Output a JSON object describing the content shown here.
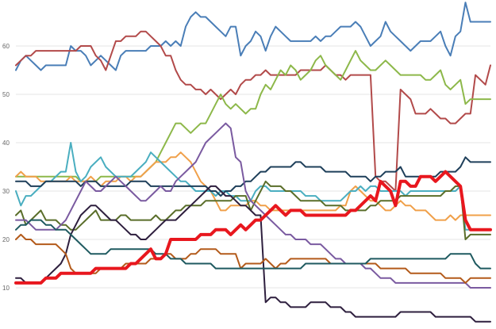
{
  "chart_data": {
    "type": "line",
    "title": "",
    "xlabel": "",
    "ylabel": "",
    "ylim": [
      2,
      70
    ],
    "x_count": 96,
    "grid": "horizontal",
    "yticks": [
      10,
      20,
      30,
      40,
      50,
      60
    ],
    "ytick_labels": [
      "10",
      "20",
      "30",
      "40",
      "50",
      "60"
    ],
    "series": [
      {
        "color": "#4a7eb7",
        "width": 2,
        "values": [
          55,
          57,
          58,
          57,
          56,
          55,
          56,
          56,
          56,
          56,
          56,
          60,
          59,
          59,
          58,
          56,
          57,
          58,
          57,
          56,
          55,
          58,
          59,
          59,
          59,
          59,
          59,
          60,
          60,
          60,
          61,
          60,
          61,
          60,
          64,
          66,
          67,
          66,
          66,
          65,
          64,
          63,
          62,
          64,
          64,
          58,
          60,
          61,
          63,
          62,
          59,
          62,
          64,
          63,
          62,
          61,
          61,
          61,
          61,
          61,
          62,
          61,
          62,
          62,
          63,
          64,
          64,
          64,
          65,
          64,
          62,
          60,
          61,
          62,
          65,
          63,
          62,
          61,
          60,
          59,
          60,
          61,
          61,
          61,
          62,
          63,
          60,
          58,
          62,
          63,
          69,
          65,
          65,
          65,
          65,
          65
        ]
      },
      {
        "color": "#b24a4a",
        "width": 2,
        "values": [
          56,
          57,
          58,
          58,
          59,
          59,
          59,
          59,
          59,
          59,
          59,
          59,
          59,
          60,
          60,
          60,
          58,
          57,
          55,
          58,
          61,
          61,
          62,
          62,
          62,
          63,
          63,
          62,
          61,
          60,
          58,
          58,
          55,
          53,
          52,
          52,
          51,
          51,
          50,
          51,
          50,
          49,
          50,
          51,
          50,
          52,
          53,
          53,
          54,
          54,
          55,
          54,
          54,
          54,
          54,
          54,
          54,
          55,
          55,
          55,
          55,
          55,
          56,
          55,
          54,
          54,
          53,
          54,
          54,
          54,
          54,
          54,
          33,
          32,
          32,
          31,
          30,
          51,
          50,
          49,
          46,
          46,
          46,
          47,
          46,
          45,
          45,
          44,
          44,
          45,
          46,
          46,
          54,
          53,
          52,
          56
        ]
      },
      {
        "color": "#8db84a",
        "width": 2,
        "values": [
          33,
          33,
          33,
          33,
          33,
          33,
          33,
          33,
          33,
          33,
          33,
          33,
          33,
          32,
          32,
          32,
          32,
          33,
          33,
          33,
          33,
          33,
          33,
          33,
          33,
          33,
          34,
          35,
          36,
          38,
          40,
          42,
          44,
          44,
          43,
          42,
          43,
          44,
          44,
          46,
          48,
          50,
          48,
          47,
          48,
          47,
          46,
          47,
          47,
          50,
          52,
          51,
          53,
          55,
          54,
          56,
          55,
          53,
          54,
          55,
          57,
          58,
          56,
          55,
          54,
          53,
          55,
          57,
          59,
          57,
          56,
          55,
          55,
          56,
          57,
          56,
          55,
          54,
          54,
          54,
          54,
          54,
          53,
          53,
          54,
          55,
          52,
          51,
          52,
          53,
          48,
          49,
          49,
          49,
          49,
          49
        ]
      },
      {
        "color": "#f0a04a",
        "width": 2,
        "values": [
          33,
          34,
          33,
          33,
          33,
          32,
          32,
          32,
          32,
          32,
          32,
          33,
          32,
          32,
          32,
          33,
          32,
          31,
          32,
          32,
          32,
          33,
          33,
          32,
          33,
          33,
          34,
          35,
          36,
          36,
          36,
          37,
          37,
          38,
          37,
          36,
          34,
          32,
          31,
          30,
          28,
          26,
          26,
          27,
          27,
          27,
          27,
          28,
          28,
          27,
          27,
          26,
          26,
          26,
          26,
          26,
          26,
          26,
          26,
          26,
          26,
          26,
          26,
          26,
          26,
          27,
          27,
          30,
          31,
          30,
          29,
          28,
          28,
          27,
          26,
          26,
          27,
          28,
          27,
          27,
          26,
          26,
          26,
          25,
          24,
          24,
          24,
          25,
          24,
          25,
          25,
          25,
          25,
          25,
          25,
          25
        ]
      },
      {
        "color": "#4aaec0",
        "width": 2,
        "values": [
          30,
          27,
          29,
          29,
          30,
          31,
          32,
          32,
          33,
          34,
          34,
          40,
          34,
          32,
          33,
          35,
          36,
          37,
          35,
          34,
          33,
          33,
          33,
          33,
          34,
          35,
          36,
          38,
          37,
          36,
          35,
          34,
          33,
          32,
          32,
          31,
          30,
          30,
          30,
          30,
          29,
          30,
          30,
          29,
          29,
          28,
          28,
          28,
          30,
          31,
          31,
          30,
          30,
          30,
          30,
          30,
          30,
          30,
          29,
          29,
          29,
          28,
          28,
          28,
          28,
          28,
          29,
          30,
          30,
          31,
          30,
          31,
          31,
          30,
          30,
          30,
          30,
          30,
          29,
          30,
          30,
          30,
          30,
          30,
          30,
          30,
          30,
          30,
          30,
          31,
          22,
          22,
          22,
          22,
          22,
          22
        ]
      },
      {
        "color": "#1e3f5a",
        "width": 2,
        "values": [
          32,
          32,
          32,
          31,
          31,
          31,
          32,
          32,
          32,
          32,
          32,
          32,
          32,
          31,
          32,
          32,
          32,
          31,
          31,
          31,
          31,
          31,
          31,
          32,
          32,
          32,
          32,
          31,
          31,
          31,
          31,
          31,
          31,
          31,
          31,
          31,
          31,
          31,
          31,
          30,
          30,
          29,
          30,
          30,
          31,
          31,
          32,
          32,
          33,
          34,
          34,
          35,
          35,
          35,
          35,
          35,
          36,
          36,
          35,
          35,
          35,
          35,
          34,
          34,
          34,
          34,
          34,
          33,
          33,
          33,
          33,
          32,
          33,
          33,
          34,
          34,
          34,
          35,
          33,
          33,
          33,
          33,
          33,
          33,
          33,
          34,
          34,
          34,
          34,
          35,
          37,
          36,
          36,
          36,
          36,
          36
        ]
      },
      {
        "color": "#5a6e2a",
        "width": 2,
        "values": [
          25,
          26,
          23,
          24,
          25,
          26,
          24,
          24,
          24,
          23,
          23,
          22,
          22,
          23,
          24,
          25,
          26,
          24,
          24,
          24,
          24,
          25,
          25,
          24,
          24,
          24,
          24,
          24,
          25,
          24,
          24,
          25,
          26,
          26,
          27,
          27,
          27,
          27,
          28,
          28,
          28,
          28,
          28,
          28,
          29,
          29,
          29,
          26,
          28,
          30,
          32,
          31,
          31,
          31,
          30,
          30,
          29,
          28,
          28,
          28,
          28,
          28,
          27,
          27,
          27,
          27,
          26,
          26,
          26,
          26,
          26,
          27,
          27,
          28,
          28,
          28,
          28,
          29,
          29,
          29,
          29,
          29,
          29,
          29,
          29,
          29,
          30,
          30,
          31,
          31,
          20,
          21,
          21,
          21,
          21,
          21
        ]
      },
      {
        "color": "#7a5aa0",
        "width": 2,
        "values": [
          24,
          24,
          24,
          23,
          22,
          22,
          22,
          22,
          22,
          23,
          24,
          26,
          28,
          30,
          32,
          31,
          30,
          30,
          31,
          32,
          33,
          32,
          31,
          30,
          29,
          28,
          28,
          29,
          30,
          31,
          30,
          30,
          32,
          33,
          34,
          35,
          36,
          38,
          40,
          41,
          42,
          43,
          44,
          43,
          37,
          36,
          30,
          28,
          27,
          26,
          25,
          24,
          23,
          22,
          21,
          21,
          20,
          20,
          20,
          19,
          19,
          19,
          18,
          17,
          16,
          16,
          15,
          15,
          15,
          15,
          14,
          14,
          13,
          12,
          12,
          12,
          11,
          11,
          11,
          11,
          11,
          11,
          11,
          11,
          11,
          11,
          11,
          11,
          11,
          11,
          11,
          10,
          10,
          10,
          10,
          10
        ]
      },
      {
        "color": "#2e1f3e",
        "width": 2,
        "values": [
          12,
          12,
          11,
          11,
          11,
          11,
          12,
          13,
          14,
          15,
          17,
          21,
          23,
          25,
          26,
          27,
          27,
          26,
          25,
          24,
          24,
          23,
          22,
          21,
          21,
          20,
          20,
          21,
          22,
          23,
          24,
          24,
          24,
          25,
          26,
          27,
          28,
          29,
          30,
          31,
          31,
          30,
          29,
          29,
          28,
          27,
          27,
          26,
          25,
          25,
          7,
          8,
          8,
          7,
          7,
          6,
          6,
          6,
          6,
          7,
          7,
          7,
          7,
          6,
          6,
          6,
          5,
          5,
          4,
          4,
          4,
          4,
          4,
          4,
          4,
          4,
          4,
          5,
          5,
          5,
          5,
          5,
          5,
          5,
          4,
          4,
          4,
          4,
          4,
          4,
          4,
          4,
          3,
          3,
          3,
          3
        ]
      },
      {
        "color": "#b35a1a",
        "width": 2,
        "values": [
          20,
          21,
          20,
          20,
          19,
          19,
          19,
          19,
          19,
          18,
          17,
          14,
          13,
          13,
          13,
          13,
          13,
          14,
          14,
          14,
          14,
          14,
          15,
          15,
          15,
          15,
          15,
          16,
          16,
          16,
          17,
          17,
          16,
          16,
          16,
          17,
          17,
          18,
          18,
          18,
          18,
          17,
          17,
          17,
          17,
          14,
          15,
          15,
          15,
          15,
          16,
          15,
          14,
          15,
          15,
          16,
          16,
          16,
          16,
          16,
          16,
          16,
          16,
          15,
          15,
          15,
          15,
          15,
          15,
          15,
          15,
          15,
          15,
          14,
          14,
          14,
          14,
          14,
          14,
          13,
          13,
          13,
          13,
          13,
          13,
          13,
          12,
          12,
          12,
          12,
          11,
          12,
          12,
          12,
          12,
          12
        ]
      },
      {
        "color": "#1f5a60",
        "width": 2,
        "values": [
          22,
          23,
          23,
          24,
          24,
          24,
          23,
          23,
          22,
          22,
          22,
          21,
          20,
          19,
          18,
          17,
          17,
          17,
          17,
          18,
          18,
          18,
          18,
          18,
          18,
          18,
          18,
          18,
          17,
          17,
          17,
          16,
          16,
          16,
          15,
          15,
          15,
          15,
          15,
          15,
          14,
          14,
          14,
          14,
          14,
          14,
          14,
          14,
          14,
          14,
          14,
          14,
          14,
          14,
          14,
          14,
          14,
          14,
          15,
          15,
          15,
          15,
          15,
          15,
          15,
          15,
          15,
          15,
          15,
          15,
          15,
          16,
          16,
          16,
          16,
          16,
          16,
          16,
          16,
          16,
          16,
          16,
          16,
          16,
          16,
          16,
          16,
          17,
          17,
          17,
          17,
          17,
          15,
          14,
          14,
          14
        ]
      },
      {
        "color": "#e8171e",
        "width": 4,
        "values": [
          11,
          11,
          11,
          11,
          11,
          11,
          12,
          12,
          12,
          13,
          13,
          13,
          13,
          13,
          13,
          13,
          14,
          14,
          14,
          14,
          14,
          14,
          14,
          15,
          15,
          16,
          17,
          18,
          16,
          16,
          17,
          20,
          20,
          20,
          20,
          20,
          20,
          21,
          21,
          21,
          22,
          22,
          22,
          21,
          22,
          23,
          22,
          23,
          24,
          24,
          25,
          26,
          27,
          26,
          25,
          26,
          26,
          26,
          25,
          25,
          25,
          25,
          25,
          25,
          25,
          25,
          25,
          26,
          26,
          27,
          28,
          29,
          28,
          32,
          31,
          30,
          27,
          32,
          32,
          31,
          31,
          33,
          33,
          33,
          32,
          33,
          34,
          33,
          32,
          31,
          24,
          22,
          22,
          22,
          22,
          22
        ]
      }
    ]
  }
}
